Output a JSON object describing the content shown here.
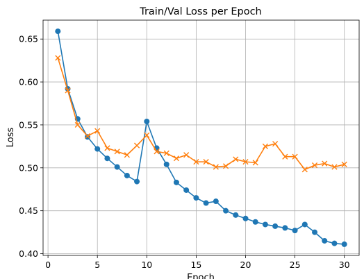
{
  "chart_data": {
    "type": "line",
    "title": "Train/Val Loss per Epoch",
    "xlabel": "Epoch",
    "ylabel": "Loss",
    "xlim": [
      -0.5,
      31.5
    ],
    "ylim": [
      0.398,
      0.672
    ],
    "xticks": [
      0,
      5,
      10,
      15,
      20,
      25,
      30
    ],
    "yticks": [
      0.4,
      0.45,
      0.5,
      0.55,
      0.6,
      0.65
    ],
    "xtick_labels": [
      "0",
      "5",
      "10",
      "15",
      "20",
      "25",
      "30"
    ],
    "ytick_labels": [
      "0.40",
      "0.45",
      "0.50",
      "0.55",
      "0.60",
      "0.65"
    ],
    "grid": true,
    "x": [
      1,
      2,
      3,
      4,
      5,
      6,
      7,
      8,
      9,
      10,
      11,
      12,
      13,
      14,
      15,
      16,
      17,
      18,
      19,
      20,
      21,
      22,
      23,
      24,
      25,
      26,
      27,
      28,
      29,
      30
    ],
    "series": [
      {
        "color": "#1f77b4",
        "marker": "circle",
        "values": [
          0.659,
          0.592,
          0.557,
          0.536,
          0.522,
          0.511,
          0.501,
          0.491,
          0.484,
          0.554,
          0.523,
          0.504,
          0.483,
          0.474,
          0.465,
          0.459,
          0.461,
          0.45,
          0.445,
          0.441,
          0.437,
          0.434,
          0.432,
          0.43,
          0.427,
          0.434,
          0.425,
          0.415,
          0.412,
          0.411
        ]
      },
      {
        "color": "#ff7f0e",
        "marker": "x",
        "values": [
          0.628,
          0.59,
          0.55,
          0.537,
          0.543,
          0.523,
          0.519,
          0.515,
          0.526,
          0.538,
          0.519,
          0.517,
          0.511,
          0.515,
          0.507,
          0.507,
          0.501,
          0.502,
          0.51,
          0.507,
          0.506,
          0.525,
          0.528,
          0.513,
          0.513,
          0.498,
          0.503,
          0.505,
          0.501,
          0.504
        ]
      }
    ]
  }
}
